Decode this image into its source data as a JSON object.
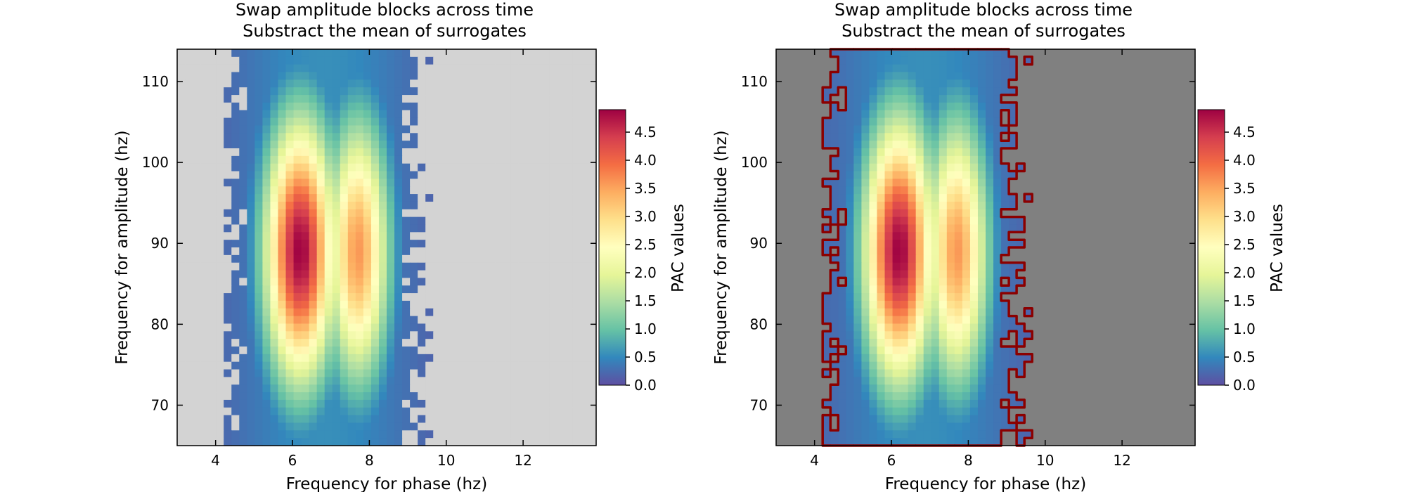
{
  "chart_data": [
    {
      "type": "heatmap",
      "title_line1": "Swap amplitude blocks across time",
      "title_line2": "Substract the mean of surrogates",
      "xlabel": "Frequency for phase (hz)",
      "ylabel": "Frequency for amplitude (hz)",
      "xlim": [
        3,
        13.9
      ],
      "ylim": [
        65,
        114
      ],
      "xticks": [
        4,
        6,
        8,
        10,
        12
      ],
      "yticks": [
        70,
        80,
        90,
        100,
        110
      ],
      "colorbar": {
        "label": "PAC values",
        "range": [
          0,
          4.9
        ],
        "ticks": [
          "0.0",
          "0.5",
          "1.0",
          "1.5",
          "2.0",
          "2.5",
          "3.0",
          "3.5",
          "4.0",
          "4.5"
        ],
        "colormap": "Spectral_r"
      },
      "nonsignificant_color": "#d3d3d3",
      "peaks": [
        {
          "f_phase": 6.2,
          "f_amp": 89,
          "value": 4.9
        },
        {
          "f_phase": 7.7,
          "f_amp": 89,
          "value": 3.6
        }
      ],
      "significance_contour": false
    },
    {
      "type": "heatmap",
      "title_line1": "Swap amplitude blocks across time",
      "title_line2": "Substract the mean of surrogates",
      "xlabel": "Frequency for phase (hz)",
      "ylabel": "Frequency for amplitude (hz)",
      "xlim": [
        3,
        13.9
      ],
      "ylim": [
        65,
        114
      ],
      "xticks": [
        4,
        6,
        8,
        10,
        12
      ],
      "yticks": [
        70,
        80,
        90,
        100,
        110
      ],
      "colorbar": {
        "label": "PAC values",
        "range": [
          0,
          4.9
        ],
        "ticks": [
          "0.0",
          "0.5",
          "1.0",
          "1.5",
          "2.0",
          "2.5",
          "3.0",
          "3.5",
          "4.0",
          "4.5"
        ],
        "colormap": "Spectral_r"
      },
      "nonsignificant_color": "#808080",
      "contour_color": "#8b0000",
      "peaks": [
        {
          "f_phase": 6.2,
          "f_amp": 89,
          "value": 4.9
        },
        {
          "f_phase": 7.7,
          "f_amp": 89,
          "value": 3.6
        }
      ],
      "significance_contour": true
    }
  ]
}
